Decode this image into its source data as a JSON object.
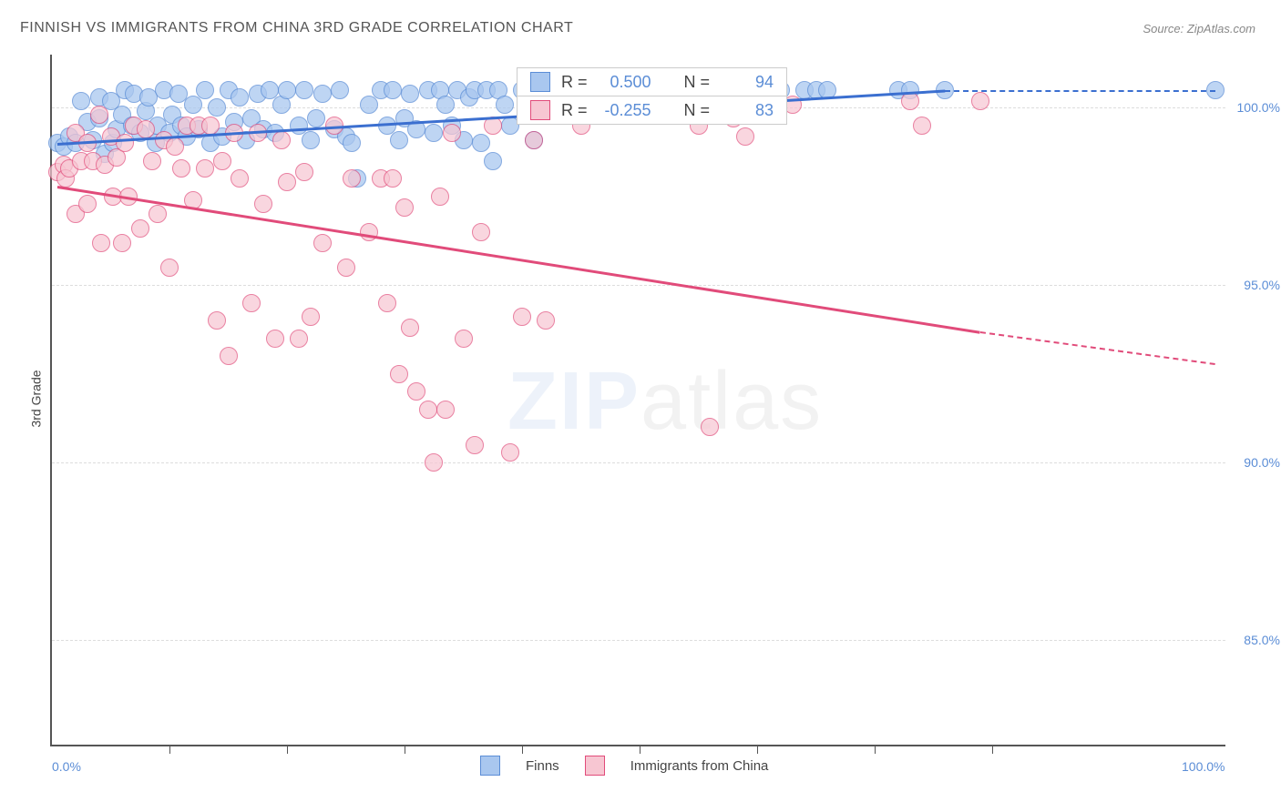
{
  "title": "FINNISH VS IMMIGRANTS FROM CHINA 3RD GRADE CORRELATION CHART",
  "source": "Source: ZipAtlas.com",
  "ylabel": "3rd Grade",
  "watermark_a": "ZIP",
  "watermark_b": "atlas",
  "chart": {
    "type": "scatter",
    "xlim": [
      0,
      100
    ],
    "ylim": [
      82,
      101.5
    ],
    "ytick_labels": [
      "85.0%",
      "90.0%",
      "95.0%",
      "100.0%"
    ],
    "ytick_values": [
      85,
      90,
      95,
      100
    ],
    "xtick_labels": [
      "0.0%",
      "100.0%"
    ],
    "xtick_values": [
      0,
      100
    ],
    "xtick_minor": [
      10,
      20,
      30,
      40,
      50,
      60,
      70,
      80
    ],
    "grid_color": "#dddddd",
    "background_color": "#ffffff",
    "series": [
      {
        "name": "Finns",
        "color_fill": "#a9c7ef",
        "color_stroke": "#5b8dd6",
        "marker_radius": 10,
        "marker_opacity": 0.75,
        "r_label": "R =",
        "r_value": "0.500",
        "n_label": "N =",
        "n_value": "94",
        "trend": {
          "x1": 0.5,
          "y1": 99.0,
          "x2": 76,
          "y2": 100.5,
          "color": "#3b6fd0",
          "dash_x1": 76,
          "dash_y1": 100.5,
          "dash_x2": 99,
          "dash_y2": 100.5
        },
        "points": [
          [
            0.5,
            99.0
          ],
          [
            1,
            98.9
          ],
          [
            1.5,
            99.2
          ],
          [
            2,
            99.0
          ],
          [
            2.5,
            100.2
          ],
          [
            3,
            99.6
          ],
          [
            3.5,
            99.1
          ],
          [
            4,
            99.7
          ],
          [
            4,
            100.3
          ],
          [
            4.5,
            98.7
          ],
          [
            5,
            100.2
          ],
          [
            5.2,
            99.0
          ],
          [
            5.5,
            99.4
          ],
          [
            6,
            99.8
          ],
          [
            6.2,
            100.5
          ],
          [
            6.8,
            99.5
          ],
          [
            7,
            100.4
          ],
          [
            7.5,
            99.3
          ],
          [
            8,
            99.9
          ],
          [
            8.2,
            100.3
          ],
          [
            8.8,
            99.0
          ],
          [
            9,
            99.5
          ],
          [
            9.5,
            100.5
          ],
          [
            10,
            99.3
          ],
          [
            10.2,
            99.8
          ],
          [
            10.8,
            100.4
          ],
          [
            11,
            99.5
          ],
          [
            11.5,
            99.2
          ],
          [
            12,
            100.1
          ],
          [
            12.5,
            99.4
          ],
          [
            13,
            100.5
          ],
          [
            13.5,
            99.0
          ],
          [
            14,
            100.0
          ],
          [
            14.5,
            99.2
          ],
          [
            15,
            100.5
          ],
          [
            15.5,
            99.6
          ],
          [
            16,
            100.3
          ],
          [
            16.5,
            99.1
          ],
          [
            17,
            99.7
          ],
          [
            17.5,
            100.4
          ],
          [
            18,
            99.4
          ],
          [
            18.5,
            100.5
          ],
          [
            19,
            99.3
          ],
          [
            19.5,
            100.1
          ],
          [
            20,
            100.5
          ],
          [
            21,
            99.5
          ],
          [
            21.5,
            100.5
          ],
          [
            22,
            99.1
          ],
          [
            22.5,
            99.7
          ],
          [
            23,
            100.4
          ],
          [
            24,
            99.4
          ],
          [
            24.5,
            100.5
          ],
          [
            25,
            99.2
          ],
          [
            25.5,
            99.0
          ],
          [
            26,
            98.0
          ],
          [
            27,
            100.1
          ],
          [
            28,
            100.5
          ],
          [
            28.5,
            99.5
          ],
          [
            29,
            100.5
          ],
          [
            29.5,
            99.1
          ],
          [
            30,
            99.7
          ],
          [
            30.5,
            100.4
          ],
          [
            31,
            99.4
          ],
          [
            32,
            100.5
          ],
          [
            32.5,
            99.3
          ],
          [
            33,
            100.5
          ],
          [
            33.5,
            100.1
          ],
          [
            34,
            99.5
          ],
          [
            34.5,
            100.5
          ],
          [
            35,
            99.1
          ],
          [
            35.5,
            100.3
          ],
          [
            36,
            100.5
          ],
          [
            36.5,
            99.0
          ],
          [
            37,
            100.5
          ],
          [
            37.5,
            98.5
          ],
          [
            38,
            100.5
          ],
          [
            38.5,
            100.1
          ],
          [
            39,
            99.5
          ],
          [
            40,
            100.5
          ],
          [
            41,
            99.1
          ],
          [
            43,
            100.5
          ],
          [
            44,
            100.5
          ],
          [
            50,
            100.1
          ],
          [
            52,
            100.5
          ],
          [
            55,
            100.5
          ],
          [
            58,
            100.5
          ],
          [
            62,
            100.5
          ],
          [
            64,
            100.5
          ],
          [
            65,
            100.5
          ],
          [
            66,
            100.5
          ],
          [
            72,
            100.5
          ],
          [
            73,
            100.5
          ],
          [
            76,
            100.5
          ],
          [
            99,
            100.5
          ]
        ]
      },
      {
        "name": "Immigrants from China",
        "color_fill": "#f7c6d2",
        "color_stroke": "#e14b7a",
        "marker_radius": 10,
        "marker_opacity": 0.7,
        "r_label": "R =",
        "r_value": "-0.255",
        "n_label": "N =",
        "n_value": "83",
        "trend": {
          "x1": 0.5,
          "y1": 97.8,
          "x2": 79,
          "y2": 93.7,
          "color": "#e14b7a",
          "dash_x1": 79,
          "dash_y1": 93.7,
          "dash_x2": 99,
          "dash_y2": 92.8
        },
        "points": [
          [
            0.5,
            98.2
          ],
          [
            1,
            98.4
          ],
          [
            1.2,
            98.0
          ],
          [
            1.5,
            98.3
          ],
          [
            2,
            97.0
          ],
          [
            2,
            99.3
          ],
          [
            2.5,
            98.5
          ],
          [
            3,
            99.0
          ],
          [
            3,
            97.3
          ],
          [
            3.5,
            98.5
          ],
          [
            4,
            99.8
          ],
          [
            4.2,
            96.2
          ],
          [
            4.5,
            98.4
          ],
          [
            5,
            99.2
          ],
          [
            5.2,
            97.5
          ],
          [
            5.5,
            98.6
          ],
          [
            6,
            96.2
          ],
          [
            6.2,
            99.0
          ],
          [
            6.5,
            97.5
          ],
          [
            7,
            99.5
          ],
          [
            7.5,
            96.6
          ],
          [
            8,
            99.4
          ],
          [
            8.5,
            98.5
          ],
          [
            9,
            97.0
          ],
          [
            9.5,
            99.1
          ],
          [
            10,
            95.5
          ],
          [
            10.5,
            98.9
          ],
          [
            11,
            98.3
          ],
          [
            11.5,
            99.5
          ],
          [
            12,
            97.4
          ],
          [
            12.5,
            99.5
          ],
          [
            13,
            98.3
          ],
          [
            13.5,
            99.5
          ],
          [
            14,
            94.0
          ],
          [
            14.5,
            98.5
          ],
          [
            15,
            93.0
          ],
          [
            15.5,
            99.3
          ],
          [
            16,
            98.0
          ],
          [
            17,
            94.5
          ],
          [
            17.5,
            99.3
          ],
          [
            18,
            97.3
          ],
          [
            19,
            93.5
          ],
          [
            19.5,
            99.1
          ],
          [
            20,
            97.9
          ],
          [
            21,
            93.5
          ],
          [
            21.5,
            98.2
          ],
          [
            22,
            94.1
          ],
          [
            23,
            96.2
          ],
          [
            24,
            99.5
          ],
          [
            25,
            95.5
          ],
          [
            25.5,
            98.0
          ],
          [
            27,
            96.5
          ],
          [
            28,
            98.0
          ],
          [
            28.5,
            94.5
          ],
          [
            29,
            98.0
          ],
          [
            29.5,
            92.5
          ],
          [
            30,
            97.2
          ],
          [
            30.5,
            93.8
          ],
          [
            31,
            92.0
          ],
          [
            32,
            91.5
          ],
          [
            32.5,
            90.0
          ],
          [
            33,
            97.5
          ],
          [
            33.5,
            91.5
          ],
          [
            34,
            99.3
          ],
          [
            35,
            93.5
          ],
          [
            36,
            90.5
          ],
          [
            36.5,
            96.5
          ],
          [
            37.5,
            99.5
          ],
          [
            39,
            90.3
          ],
          [
            40,
            94.1
          ],
          [
            41,
            99.1
          ],
          [
            42,
            94.0
          ],
          [
            45,
            99.5
          ],
          [
            50,
            100.2
          ],
          [
            53,
            99.9
          ],
          [
            55,
            99.5
          ],
          [
            56,
            91.0
          ],
          [
            58,
            99.7
          ],
          [
            59,
            99.2
          ],
          [
            63,
            100.1
          ],
          [
            73,
            100.2
          ],
          [
            79,
            100.2
          ],
          [
            74,
            99.5
          ]
        ]
      }
    ],
    "legend_bottom": [
      {
        "swatch_fill": "#a9c7ef",
        "swatch_stroke": "#5b8dd6",
        "label": "Finns"
      },
      {
        "swatch_fill": "#f7c6d2",
        "swatch_stroke": "#e14b7a",
        "label": "Immigrants from China"
      }
    ]
  }
}
